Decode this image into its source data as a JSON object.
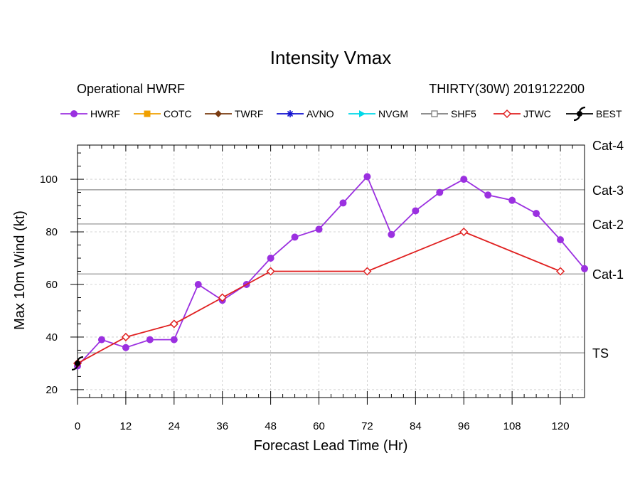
{
  "chart_data": {
    "type": "line",
    "title": "Intensity Vmax",
    "subtitle_left": "Operational HWRF",
    "subtitle_right": "THIRTY(30W) 2019122200",
    "xlabel": "Forecast Lead Time (Hr)",
    "ylabel": "Max 10m Wind (kt)",
    "xlim": [
      0,
      126
    ],
    "ylim": [
      17,
      113
    ],
    "x_ticks": [
      "0",
      "12",
      "24",
      "36",
      "48",
      "60",
      "72",
      "84",
      "96",
      "108",
      "120"
    ],
    "y_ticks": [
      "20",
      "40",
      "60",
      "80",
      "100"
    ],
    "grid": true,
    "legend_position": "top",
    "legend": [
      {
        "name": "HWRF",
        "color": "#9b30e0",
        "marker": "circle"
      },
      {
        "name": "COTC",
        "color": "#f0a000",
        "marker": "square"
      },
      {
        "name": "TWRF",
        "color": "#7a3b10",
        "marker": "diamond"
      },
      {
        "name": "AVNO",
        "color": "#1010d0",
        "marker": "asterisk"
      },
      {
        "name": "NVGM",
        "color": "#00d8e8",
        "marker": "triangle"
      },
      {
        "name": "SHF5",
        "color": "#7f7f7f",
        "marker": "open-square"
      },
      {
        "name": "JTWC",
        "color": "#e02020",
        "marker": "open-diamond"
      },
      {
        "name": "BEST",
        "color": "#000000",
        "marker": "hurricane-symbol"
      }
    ],
    "thresholds": [
      {
        "label": "TS",
        "value": 34
      },
      {
        "label": "Cat-1",
        "value": 64
      },
      {
        "label": "Cat-2",
        "value": 83
      },
      {
        "label": "Cat-3",
        "value": 96
      },
      {
        "label": "Cat-4",
        "value": 113
      }
    ],
    "series": [
      {
        "name": "HWRF",
        "color": "#9b30e0",
        "x": [
          0,
          6,
          12,
          18,
          24,
          30,
          36,
          42,
          48,
          54,
          60,
          66,
          72,
          78,
          84,
          90,
          96,
          102,
          108,
          114,
          120,
          126
        ],
        "y": [
          29,
          39,
          36,
          39,
          39,
          60,
          54,
          60,
          70,
          78,
          81,
          91,
          101,
          79,
          88,
          95,
          100,
          94,
          92,
          87,
          77,
          66
        ]
      },
      {
        "name": "JTWC",
        "color": "#e02020",
        "x": [
          0,
          12,
          24,
          36,
          48,
          72,
          96,
          120
        ],
        "y": [
          30,
          40,
          45,
          55,
          65,
          65,
          80,
          65
        ]
      },
      {
        "name": "BEST",
        "color": "#000000",
        "x": [
          0
        ],
        "y": [
          30
        ]
      }
    ]
  }
}
